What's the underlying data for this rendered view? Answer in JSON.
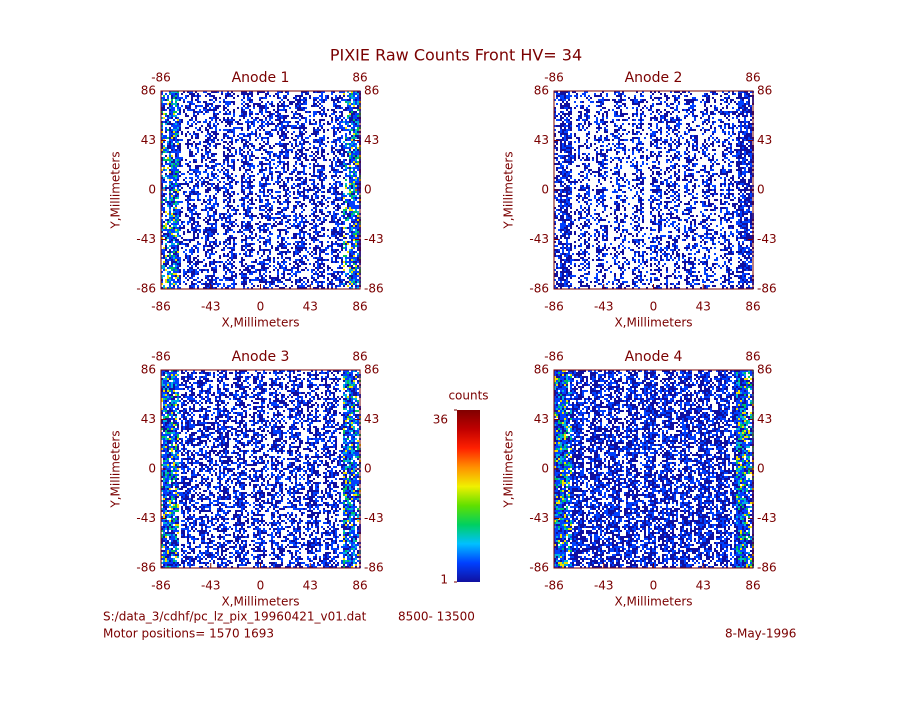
{
  "title": "PIXIE Raw Counts Front HV= 34",
  "chart_data": [
    {
      "type": "heatmap",
      "title": "Anode 1",
      "xlabel": "X,Millimeters",
      "ylabel": "Y,Millimeters",
      "xlim": [
        -86,
        86
      ],
      "ylim": [
        -86,
        86
      ],
      "xticks": [
        -86,
        -43,
        0,
        43,
        86
      ],
      "yticks": [
        -86,
        -43,
        0,
        43,
        86
      ],
      "x2ticks": [
        -86,
        86
      ],
      "y2ticks": [
        -86,
        -43,
        0,
        43,
        86
      ]
    },
    {
      "type": "heatmap",
      "title": "Anode 2",
      "xlabel": "X,Millimeters",
      "ylabel": "Y,Millimeters",
      "xlim": [
        -86,
        86
      ],
      "ylim": [
        -86,
        86
      ],
      "xticks": [
        -86,
        -43,
        0,
        43,
        86
      ],
      "yticks": [
        -86,
        -43,
        0,
        43,
        86
      ],
      "x2ticks": [
        -86,
        86
      ],
      "y2ticks": [
        -86,
        -43,
        0,
        43,
        86
      ]
    },
    {
      "type": "heatmap",
      "title": "Anode 3",
      "xlabel": "X,Millimeters",
      "ylabel": "Y,Millimeters",
      "xlim": [
        -86,
        86
      ],
      "ylim": [
        -86,
        86
      ],
      "xticks": [
        -86,
        -43,
        0,
        43,
        86
      ],
      "yticks": [
        -86,
        -43,
        0,
        43,
        86
      ],
      "x2ticks": [
        -86,
        86
      ],
      "y2ticks": [
        -86,
        -43,
        0,
        43,
        86
      ]
    },
    {
      "type": "heatmap",
      "title": "Anode 4",
      "xlabel": "X,Millimeters",
      "ylabel": "Y,Millimeters",
      "xlim": [
        -86,
        86
      ],
      "ylim": [
        -86,
        86
      ],
      "xticks": [
        -86,
        -43,
        0,
        43,
        86
      ],
      "yticks": [
        -86,
        -43,
        0,
        43,
        86
      ],
      "x2ticks": [
        -86,
        86
      ],
      "y2ticks": [
        -86,
        -43,
        0,
        43,
        86
      ]
    }
  ],
  "colorbar": {
    "label": "counts",
    "lim": [
      1,
      36
    ],
    "ticks": [
      1,
      36
    ],
    "colors": [
      "#1010a0",
      "#0040ff",
      "#00c0ff",
      "#00d060",
      "#60e000",
      "#f0f000",
      "#ff9000",
      "#ff2000",
      "#c00000",
      "#800000"
    ]
  },
  "footer": {
    "file": "S:/data_3/cdhf/pc_lz_pix_19960421_v01.dat",
    "range": "8500- 13500",
    "motor": "Motor positions= 1570 1693",
    "date": "8-May-1996"
  }
}
